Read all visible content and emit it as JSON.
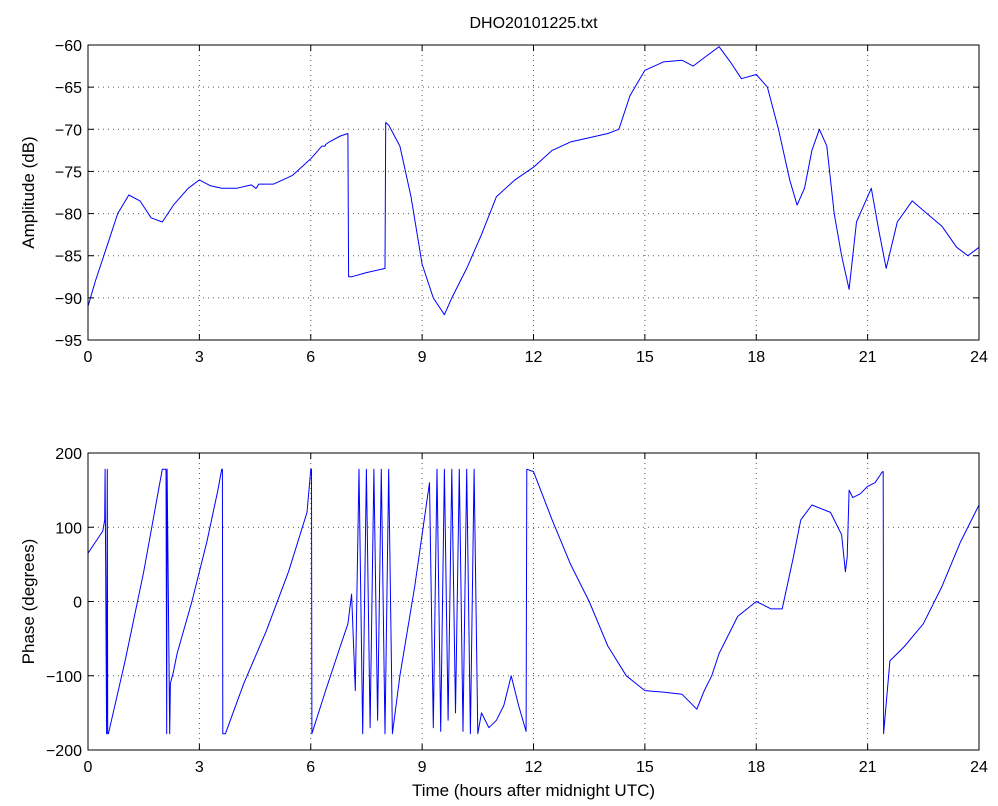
{
  "figure_title": "DHO20101225.txt",
  "chart_data": [
    {
      "type": "line",
      "title": "DHO20101225.txt",
      "xlabel": "",
      "ylabel": "Amplitude (dB)",
      "xlim": [
        0,
        24
      ],
      "ylim": [
        -95,
        -60
      ],
      "xticks": [
        0,
        3,
        6,
        9,
        12,
        15,
        18,
        21,
        24
      ],
      "yticks": [
        -95,
        -90,
        -85,
        -80,
        -75,
        -70,
        -65,
        -60
      ],
      "grid": true,
      "color": "#0000ff",
      "series": [
        {
          "x": [
            0,
            0.2,
            0.5,
            0.8,
            1.1,
            1.4,
            1.7,
            2.0,
            2.3,
            2.7,
            3.0,
            3.3,
            3.6,
            4.0,
            4.4,
            4.52,
            4.53,
            4.6,
            5.0,
            5.5,
            6.0,
            6.3,
            6.39,
            6.4,
            6.5,
            6.8,
            7.0,
            7.02,
            7.1,
            7.5,
            8.0,
            8.02,
            8.1,
            8.4,
            8.7,
            9.0,
            9.3,
            9.6,
            9.8,
            10.2,
            10.6,
            11.0,
            11.5,
            12.0,
            12.5,
            13.0,
            13.5,
            14.0,
            14.3,
            14.6,
            15.0,
            15.5,
            16.0,
            16.3,
            16.6,
            17.0,
            17.3,
            17.6,
            18.0,
            18.3,
            18.6,
            18.9,
            19.1,
            19.3,
            19.5,
            19.7,
            19.9,
            20.1,
            20.3,
            20.5,
            20.7,
            20.9,
            21.1,
            21.3,
            21.5,
            21.8,
            22.2,
            22.6,
            23.0,
            23.4,
            23.7,
            24.0
          ],
          "y": [
            -91,
            -88,
            -84,
            -80,
            -77.8,
            -78.5,
            -80.5,
            -81,
            -79,
            -77,
            -76,
            -76.7,
            -77,
            -77,
            -76.6,
            -77,
            -77,
            -76.5,
            -76.5,
            -75.5,
            -73.5,
            -72,
            -72,
            -71.8,
            -71.5,
            -70.8,
            -70.5,
            -87.5,
            -87.5,
            -87,
            -86.5,
            -69.2,
            -69.5,
            -72,
            -78,
            -86,
            -90,
            -92,
            -90,
            -86.5,
            -82.5,
            -78,
            -76,
            -74.5,
            -72.5,
            -71.5,
            -71,
            -70.5,
            -70,
            -66,
            -63,
            -62,
            -61.8,
            -62.5,
            -61.5,
            -60.2,
            -62,
            -64,
            -63.5,
            -65,
            -70,
            -76,
            -79,
            -77,
            -72.5,
            -70,
            -72,
            -80,
            -85,
            -89,
            -81,
            -79,
            -77,
            -82,
            -86.5,
            -81,
            -78.5,
            -80,
            -81.5,
            -84,
            -85,
            -84
          ]
        }
      ]
    },
    {
      "type": "line",
      "title": "",
      "xlabel": "Time (hours after midnight UTC)",
      "ylabel": "Phase (degrees)",
      "xlim": [
        0,
        24
      ],
      "ylim": [
        -200,
        200
      ],
      "xticks": [
        0,
        3,
        6,
        9,
        12,
        15,
        18,
        21,
        24
      ],
      "yticks": [
        -200,
        -100,
        0,
        100,
        200
      ],
      "grid": true,
      "color": "#0000ff",
      "series": [
        {
          "x": [
            0,
            0.2,
            0.4,
            0.45,
            0.46,
            0.5,
            0.52,
            0.53,
            0.55,
            1.0,
            1.5,
            1.9,
            2.0,
            2.1,
            2.12,
            2.13,
            2.2,
            2.22,
            2.3,
            2.4,
            2.8,
            3.2,
            3.5,
            3.6,
            3.62,
            3.63,
            3.7,
            4.2,
            4.8,
            5.4,
            5.9,
            6.0,
            6.02,
            6.03,
            6.4,
            6.8,
            7.0,
            7.1,
            7.2,
            7.3,
            7.4,
            7.5,
            7.6,
            7.7,
            7.8,
            7.9,
            8.0,
            8.1,
            8.2,
            8.4,
            8.8,
            9.2,
            9.3,
            9.4,
            9.5,
            9.6,
            9.7,
            9.8,
            9.9,
            10.0,
            10.1,
            10.2,
            10.3,
            10.4,
            10.5,
            10.6,
            10.8,
            11.0,
            11.2,
            11.4,
            11.6,
            11.8,
            11.82,
            11.83,
            12.0,
            12.5,
            13.0,
            13.5,
            14.0,
            14.5,
            15.0,
            15.5,
            16.0,
            16.2,
            16.4,
            16.6,
            16.8,
            17.0,
            17.5,
            18.0,
            18.4,
            18.7,
            19.0,
            19.2,
            19.5,
            20.0,
            20.3,
            20.4,
            20.45,
            20.5,
            20.6,
            20.8,
            21.0,
            21.2,
            21.4,
            21.42,
            21.43,
            21.6,
            22.0,
            22.5,
            23.0,
            23.5,
            24.0
          ],
          "y": [
            65,
            80,
            95,
            110,
            178,
            -178,
            178,
            -178,
            -178,
            -80,
            40,
            150,
            178,
            178,
            -178,
            178,
            -178,
            -110,
            -95,
            -70,
            0,
            80,
            150,
            178,
            178,
            -178,
            -178,
            -110,
            -40,
            40,
            120,
            178,
            178,
            -178,
            -120,
            -60,
            -30,
            10,
            -120,
            178,
            -178,
            178,
            -170,
            178,
            -160,
            178,
            -178,
            178,
            -178,
            -100,
            20,
            160,
            -170,
            178,
            -175,
            178,
            -160,
            178,
            -150,
            178,
            -175,
            178,
            -178,
            178,
            -178,
            -150,
            -170,
            -160,
            -140,
            -100,
            -140,
            -175,
            178,
            178,
            175,
            110,
            50,
            0,
            -60,
            -100,
            -120,
            -122,
            -125,
            -135,
            -145,
            -120,
            -100,
            -70,
            -20,
            0,
            -10,
            -10,
            60,
            110,
            130,
            120,
            90,
            40,
            60,
            150,
            140,
            145,
            155,
            160,
            175,
            175,
            -178,
            -80,
            -60,
            -30,
            20,
            80,
            130
          ]
        }
      ]
    }
  ]
}
